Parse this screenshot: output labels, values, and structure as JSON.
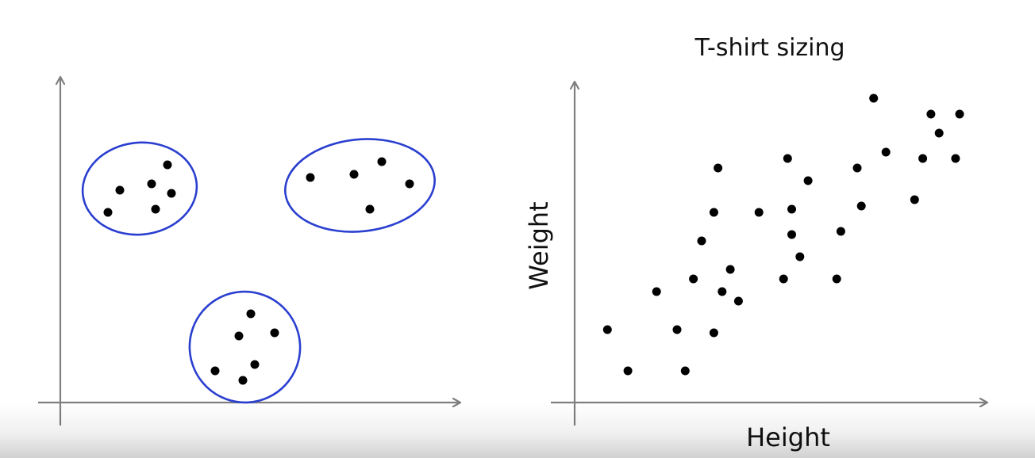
{
  "chart_data": [
    {
      "type": "scatter",
      "title": "",
      "xlabel": "",
      "ylabel": "",
      "xlim": [
        0,
        10
      ],
      "ylim": [
        0,
        10
      ],
      "grid": false,
      "cluster_outline_color": "#2a3fd0",
      "clusters": [
        {
          "points": [
            [
              2.7,
              7.5
            ],
            [
              1.5,
              6.7
            ],
            [
              1.2,
              6.0
            ],
            [
              2.3,
              6.9
            ],
            [
              2.8,
              6.6
            ],
            [
              2.4,
              6.1
            ]
          ]
        },
        {
          "points": [
            [
              8.1,
              7.6
            ],
            [
              6.3,
              7.1
            ],
            [
              7.4,
              7.2
            ],
            [
              8.8,
              6.9
            ],
            [
              7.8,
              6.1
            ]
          ]
        },
        {
          "points": [
            [
              4.8,
              2.8
            ],
            [
              4.5,
              2.1
            ],
            [
              5.4,
              2.2
            ],
            [
              3.9,
              1.0
            ],
            [
              4.9,
              1.2
            ],
            [
              4.6,
              0.7
            ]
          ]
        }
      ]
    },
    {
      "type": "scatter",
      "title": "T-shirt sizing",
      "xlabel": "Height",
      "ylabel": "Weight",
      "xlim": [
        0,
        10
      ],
      "ylim": [
        0,
        10
      ],
      "grid": false,
      "points": [
        [
          7.3,
          9.6
        ],
        [
          8.7,
          9.1
        ],
        [
          9.4,
          9.1
        ],
        [
          8.9,
          8.5
        ],
        [
          7.6,
          7.9
        ],
        [
          8.5,
          7.7
        ],
        [
          9.3,
          7.7
        ],
        [
          3.5,
          7.4
        ],
        [
          5.2,
          7.7
        ],
        [
          6.9,
          7.4
        ],
        [
          5.7,
          7.0
        ],
        [
          8.3,
          6.4
        ],
        [
          7.0,
          6.2
        ],
        [
          3.4,
          6.0
        ],
        [
          4.5,
          6.0
        ],
        [
          5.3,
          6.1
        ],
        [
          5.3,
          5.3
        ],
        [
          6.5,
          5.4
        ],
        [
          3.1,
          5.1
        ],
        [
          5.5,
          4.6
        ],
        [
          3.8,
          4.2
        ],
        [
          2.9,
          3.9
        ],
        [
          5.1,
          3.9
        ],
        [
          6.4,
          3.9
        ],
        [
          2.0,
          3.5
        ],
        [
          3.6,
          3.5
        ],
        [
          4.0,
          3.2
        ],
        [
          0.8,
          2.3
        ],
        [
          2.5,
          2.3
        ],
        [
          3.4,
          2.2
        ],
        [
          1.3,
          1.0
        ],
        [
          2.7,
          1.0
        ]
      ]
    }
  ]
}
